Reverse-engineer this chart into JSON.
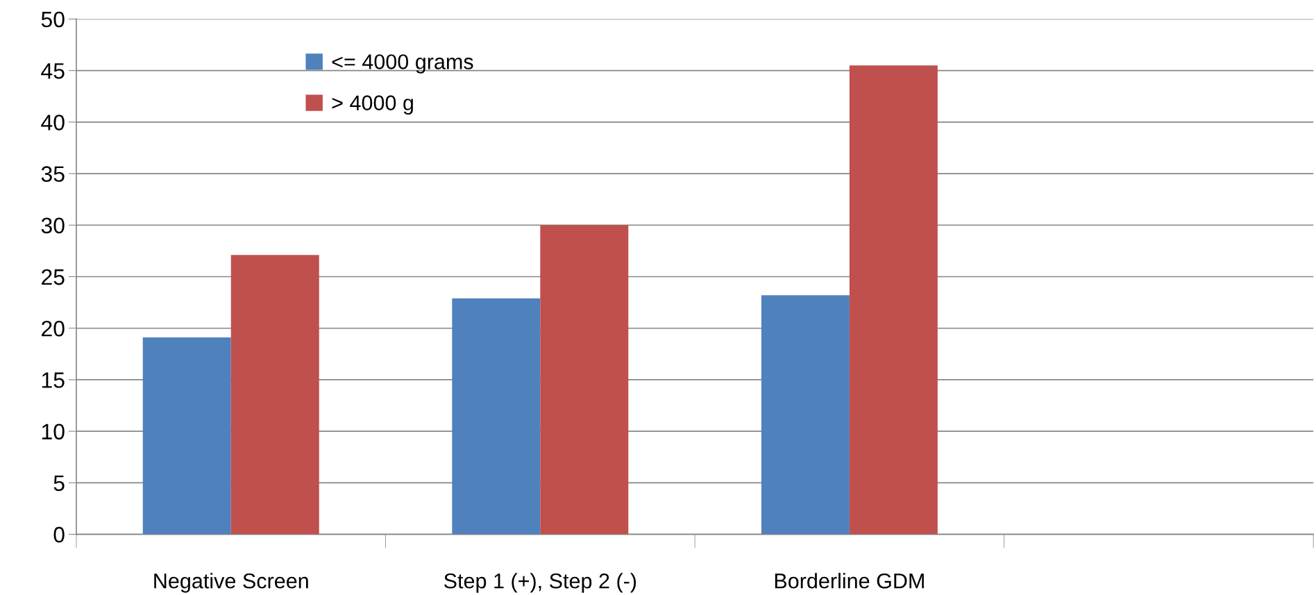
{
  "chart_data": {
    "type": "bar",
    "categories": [
      "Negative Screen",
      "Step 1 (+), Step 2 (-)",
      "Borderline GDM",
      null
    ],
    "series": [
      {
        "name": "<= 4000 grams",
        "color": "#4f81bd",
        "values": [
          19.1,
          22.9,
          23.2,
          null
        ]
      },
      {
        "name": "> 4000 g",
        "color": "#c0504d",
        "values": [
          27.1,
          30.0,
          45.5,
          null
        ]
      }
    ],
    "ylim": [
      0,
      50
    ],
    "yticks": [
      0,
      5,
      10,
      15,
      20,
      25,
      30,
      35,
      40,
      45,
      50
    ],
    "grid": "y",
    "legend": "top left"
  }
}
